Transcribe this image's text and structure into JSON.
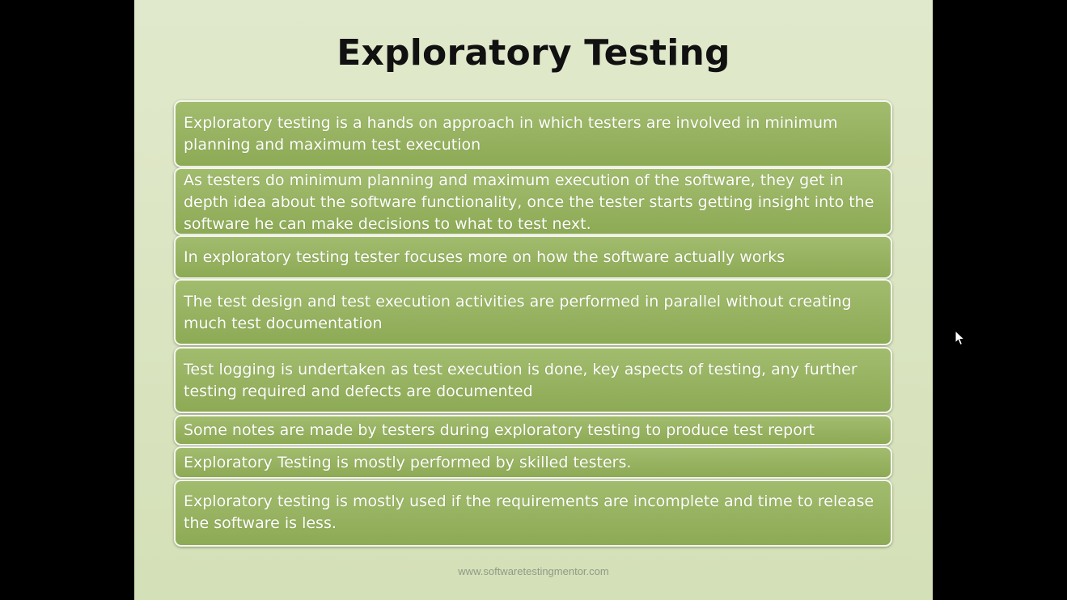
{
  "slide": {
    "title": "Exploratory Testing",
    "points": [
      "Exploratory testing is a hands on approach in which testers are involved in minimum planning and maximum test execution",
      "As testers do minimum planning and maximum execution of the software, they get in depth idea about the software functionality, once the tester starts getting insight into the software he can make decisions to what to test next.",
      "In exploratory testing tester focuses more on how the software actually works",
      "The test design and test execution activities are performed in parallel without creating much test documentation",
      "Test logging is undertaken as test execution is done, key aspects of testing, any further testing required and defects are documented",
      "Some notes are made by testers during exploratory testing to produce test report",
      "Exploratory Testing is mostly performed by skilled testers.",
      "Exploratory testing is mostly used if the requirements are incomplete and time to release the software is less."
    ],
    "footer": "www.softwaretestingmentor.com"
  },
  "colors": {
    "background": "#000000",
    "slide_background": "#dbe5c4",
    "box_fill": "#96b162",
    "box_border": "#f4f7ec",
    "title_text": "#111111",
    "box_text": "#ffffff"
  },
  "icons": {
    "cursor": "mouse-pointer-icon"
  }
}
